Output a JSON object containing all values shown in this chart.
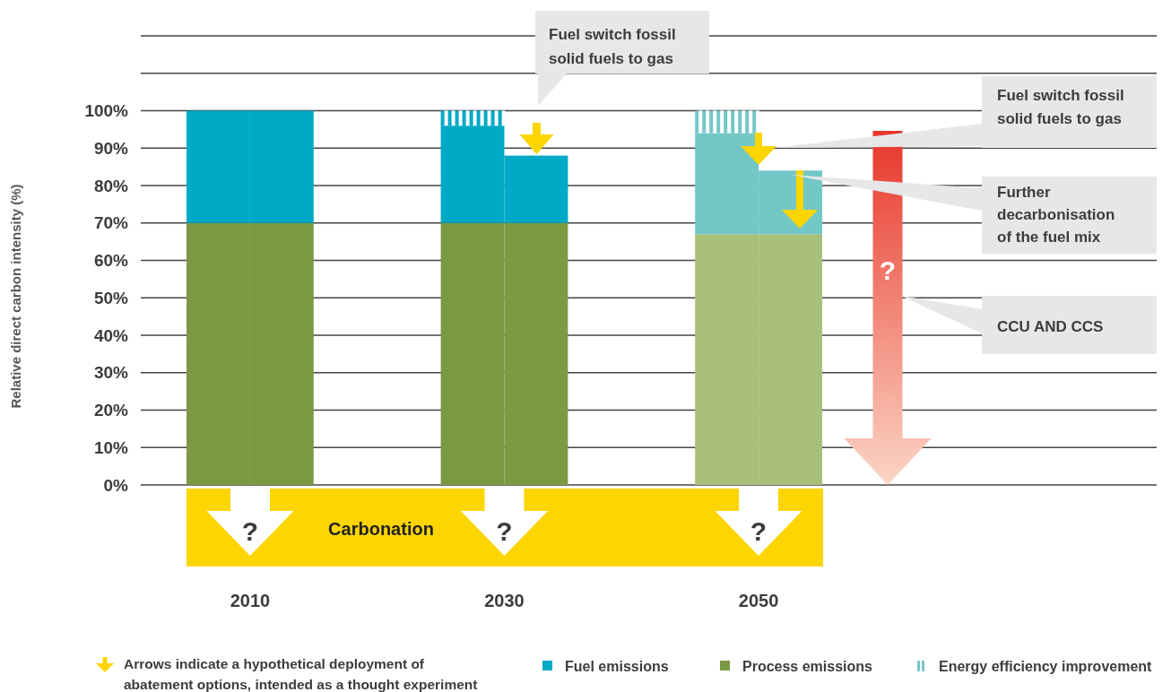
{
  "chart_data": {
    "type": "bar",
    "stacked": true,
    "ylabel": "Relative direct carbon intensity (%)",
    "categories": [
      "2010",
      null,
      null,
      null,
      "2030",
      null,
      null,
      null,
      "2050",
      null
    ],
    "series": [
      {
        "name": "Process emissions",
        "color": "#7a9a42",
        "colors": [
          "#7a9a42",
          "#7a9a42",
          null,
          null,
          "#7a9a42",
          "#7a9a42",
          null,
          null,
          "#a8bf7a",
          "#a8bf7a"
        ],
        "values": [
          70,
          70,
          null,
          null,
          70,
          70,
          null,
          null,
          67,
          67
        ]
      },
      {
        "name": "Fuel emissions",
        "color": "#00a9c5",
        "colors": [
          "#00a9c5",
          "#00a9c5",
          null,
          null,
          "#00a9c5",
          "#00a9c5",
          null,
          null,
          "#72c8c6",
          "#72c8c6"
        ],
        "values": [
          30,
          30,
          null,
          null,
          26,
          18,
          null,
          null,
          27,
          17
        ]
      },
      {
        "name": "Energy efficiency improvement",
        "color": "#72c8c6",
        "colors": [
          null,
          null,
          null,
          null,
          "#00a9c5",
          null,
          null,
          null,
          "#72c8c6",
          null
        ],
        "values": [
          null,
          null,
          null,
          null,
          4,
          null,
          null,
          null,
          6,
          null
        ]
      }
    ],
    "ylim": [
      0,
      120
    ],
    "yticks": [
      {
        "value": 0,
        "label": "0%"
      },
      {
        "value": 10,
        "label": "10%"
      },
      {
        "value": 20,
        "label": "20%"
      },
      {
        "value": 30,
        "label": "30%"
      },
      {
        "value": 40,
        "label": "40%"
      },
      {
        "value": 50,
        "label": "50%"
      },
      {
        "value": 60,
        "label": "60%"
      },
      {
        "value": 70,
        "label": "70%"
      },
      {
        "value": 80,
        "label": "80%"
      },
      {
        "value": 90,
        "label": "90%"
      },
      {
        "value": 100,
        "label": "100%"
      },
      {
        "value": 110,
        "label": null
      },
      {
        "value": 120,
        "label": null
      }
    ],
    "grid": "y",
    "legend": "bottom",
    "annotations": [
      "Fuel switch fossil\nsolid fuels to gas",
      "Fuel switch fossil\nsolid fuels to gas",
      "Further\ndecarbonisation\nof the fuel mix",
      "CCU AND CCS",
      "Carbonation",
      "?",
      "?",
      "?",
      "?",
      "Arrows indicate a hypothetical deployment of\nabatement options, intended as a thought experiment"
    ]
  }
}
